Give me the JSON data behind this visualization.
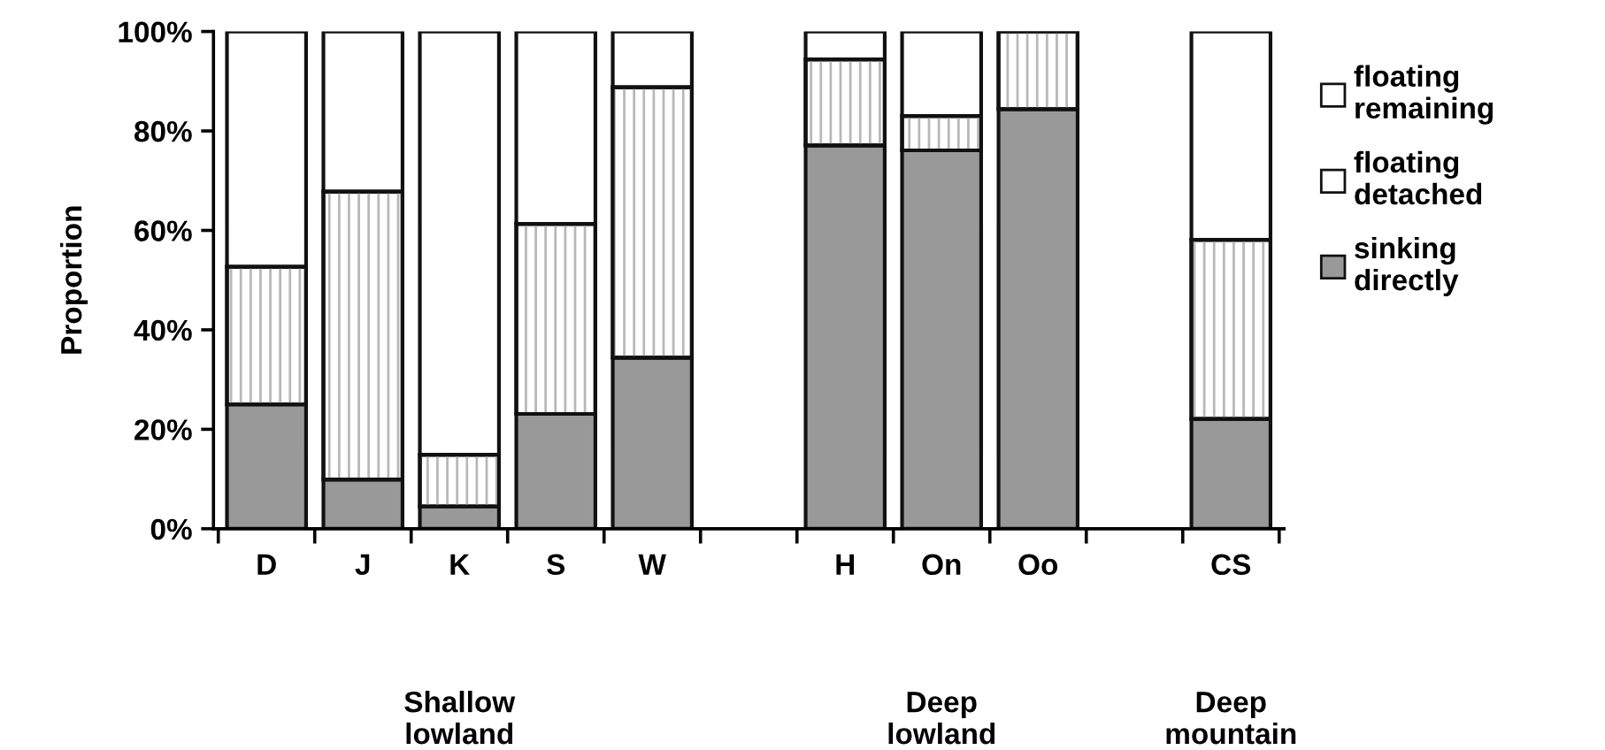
{
  "chart_data": {
    "type": "bar",
    "stacked": true,
    "ylabel": "Proportion",
    "categories": [
      "D",
      "J",
      "K",
      "S",
      "W",
      null,
      "H",
      "On",
      "Oo",
      null,
      "CS"
    ],
    "series": [
      {
        "name": "sinking directly",
        "color": "#999999",
        "values": [
          25.0,
          9.9,
          4.5,
          23.1,
          34.4,
          null,
          77.1,
          76.1,
          84.4,
          null,
          22.1
        ]
      },
      {
        "name": "floating detached",
        "color": "#ffffff",
        "values": [
          27.7,
          57.9,
          10.4,
          38.2,
          54.4,
          null,
          17.3,
          6.9,
          15.6,
          null,
          36.0
        ]
      },
      {
        "name": "floating remaining",
        "color": "#ffffff",
        "values": [
          47.3,
          32.2,
          85.1,
          38.7,
          11.2,
          null,
          5.6,
          17.0,
          null,
          null,
          41.9
        ]
      }
    ],
    "ylim": [
      0,
      100
    ],
    "yticks": [
      {
        "value": 0,
        "label": "0%"
      },
      {
        "value": 20,
        "label": "20%"
      },
      {
        "value": 40,
        "label": "40%"
      },
      {
        "value": 60,
        "label": "60%"
      },
      {
        "value": 80,
        "label": "80%"
      },
      {
        "value": 100,
        "label": "100%"
      }
    ],
    "annotations": [
      "Shallow\nlowland",
      "Deep\nlowland",
      "Deep\nmountain"
    ],
    "legend": "right",
    "grid": false
  }
}
